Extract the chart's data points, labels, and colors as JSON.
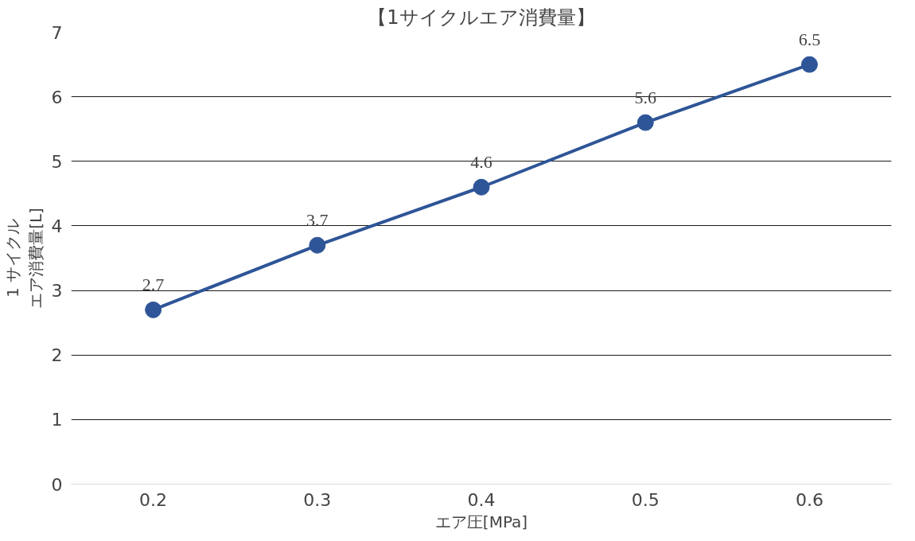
{
  "chart_data": {
    "type": "line",
    "title": "【1サイクルエア消費量】",
    "xlabel": "エア圧[MPa]",
    "ylabel": "1 サイクルエア消費量[L]",
    "categories": [
      "0.2",
      "0.3",
      "0.4",
      "0.5",
      "0.6"
    ],
    "series": [
      {
        "color": "#2e5597",
        "values": [
          2.7,
          3.7,
          4.6,
          5.6,
          6.5
        ]
      }
    ],
    "ylim": [
      0,
      7
    ],
    "yticks": [
      0,
      1,
      2,
      3,
      4,
      5,
      6,
      7
    ],
    "grid": "y",
    "marker": "circle",
    "line_style": "solid",
    "data_labels": true
  }
}
